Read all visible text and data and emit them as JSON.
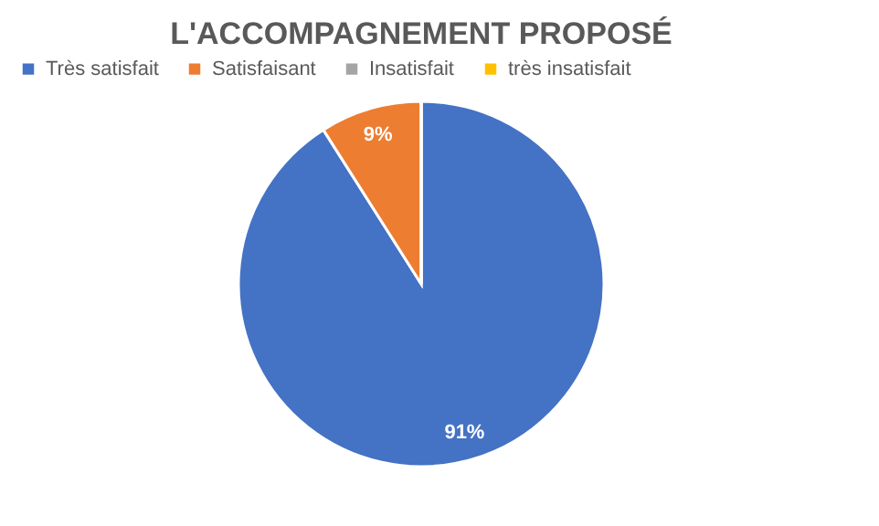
{
  "chart_data": {
    "type": "pie",
    "title": "L'ACCOMPAGNEMENT PROPOSÉ",
    "categories": [
      "Très satisfait",
      "Satisfaisant",
      "Insatisfait",
      "très insatisfait"
    ],
    "values": [
      91,
      9,
      0,
      0
    ],
    "colors": [
      "#4472c4",
      "#ed7d31",
      "#a5a5a5",
      "#ffc000"
    ],
    "value_labels": [
      "91%",
      "9%",
      null,
      null
    ],
    "legend": "top"
  }
}
